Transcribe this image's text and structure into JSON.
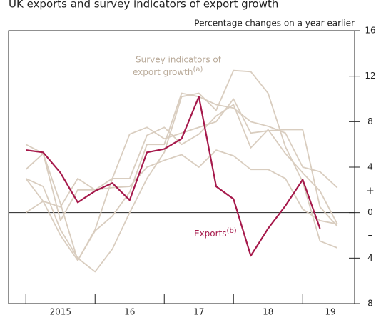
{
  "chart_data": {
    "type": "line",
    "title": "UK exports and survey indicators of export growth",
    "y_label": "Percentage changes on a year earlier",
    "sign_labels": [
      "+",
      "–"
    ],
    "x": [
      2015.0,
      2015.25,
      2015.5,
      2015.75,
      2016.0,
      2016.25,
      2016.5,
      2016.75,
      2017.0,
      2017.25,
      2017.5,
      2017.75,
      2018.0,
      2018.25,
      2018.5,
      2018.75,
      2019.0,
      2019.25,
      2019.5
    ],
    "xlim": [
      2014.75,
      2019.75
    ],
    "xticks": [
      2015,
      2016,
      2017,
      2018,
      2019
    ],
    "x_labels": [
      {
        "value": 2015.5,
        "label": "2015"
      },
      {
        "value": 2016.5,
        "label": "16"
      },
      {
        "value": 2017.5,
        "label": "17"
      },
      {
        "value": 2018.5,
        "label": "18"
      },
      {
        "value": 2019.4,
        "label": "19"
      }
    ],
    "ylim": [
      -8,
      16
    ],
    "yticks": [
      16,
      12,
      8,
      4,
      0,
      {
        "value": -4,
        "label": "4"
      },
      {
        "value": -8,
        "label": "8"
      }
    ],
    "survey_label": {
      "lines": [
        "Survey indicators of",
        "export growth"
      ],
      "note": "(a)"
    },
    "series": [
      {
        "color": "#d9cdbf",
        "values": [
          6.0,
          5.2,
          -0.7,
          2.0,
          2.0,
          3.0,
          6.9,
          7.5,
          6.5,
          7.0,
          7.5,
          8.0,
          10.0,
          7.0,
          7.2,
          7.3,
          7.3,
          0.5,
          -1.2
        ]
      },
      {
        "color": "#d9cdbf",
        "values": [
          3.8,
          5.2,
          0.8,
          -4.2,
          -1.6,
          -0.3,
          1.8,
          6.0,
          6.0,
          10.5,
          10.2,
          9.5,
          9.2,
          8.0,
          7.6,
          7.0,
          4.0,
          3.6,
          2.2
        ]
      },
      {
        "color": "#d9cdbf",
        "values": [
          3.0,
          2.3,
          -1.5,
          -4.0,
          -5.2,
          -3.2,
          0.0,
          3.0,
          5.3,
          10.2,
          10.5,
          9.0,
          12.5,
          12.4,
          10.5,
          5.8,
          2.7,
          -2.5,
          -3.1
        ]
      },
      {
        "color": "#d9cdbf",
        "values": [
          0.0,
          1.0,
          0.5,
          3.0,
          2.0,
          2.2,
          2.3,
          4.0,
          4.6,
          5.1,
          4.0,
          5.5,
          5.0,
          3.8,
          3.8,
          3.0,
          0.3,
          -0.7,
          -1.0
        ]
      },
      {
        "color": "#d9cdbf",
        "values": [
          3.0,
          1.0,
          -2.0,
          -4.2,
          -1.5,
          3.0,
          3.0,
          6.8,
          7.5,
          6.0,
          6.9,
          8.5,
          9.5,
          5.7,
          7.3,
          5.2,
          3.5,
          1.9,
          -1.0
        ]
      },
      {
        "name": "Exports",
        "note": "(b)",
        "color": "#a6194b",
        "values": [
          5.5,
          5.3,
          3.5,
          0.9,
          1.9,
          2.6,
          1.1,
          5.3,
          5.6,
          6.5,
          10.2,
          2.3,
          1.2,
          -3.8,
          -1.4,
          0.6,
          2.9,
          -1.4,
          null
        ]
      }
    ]
  }
}
